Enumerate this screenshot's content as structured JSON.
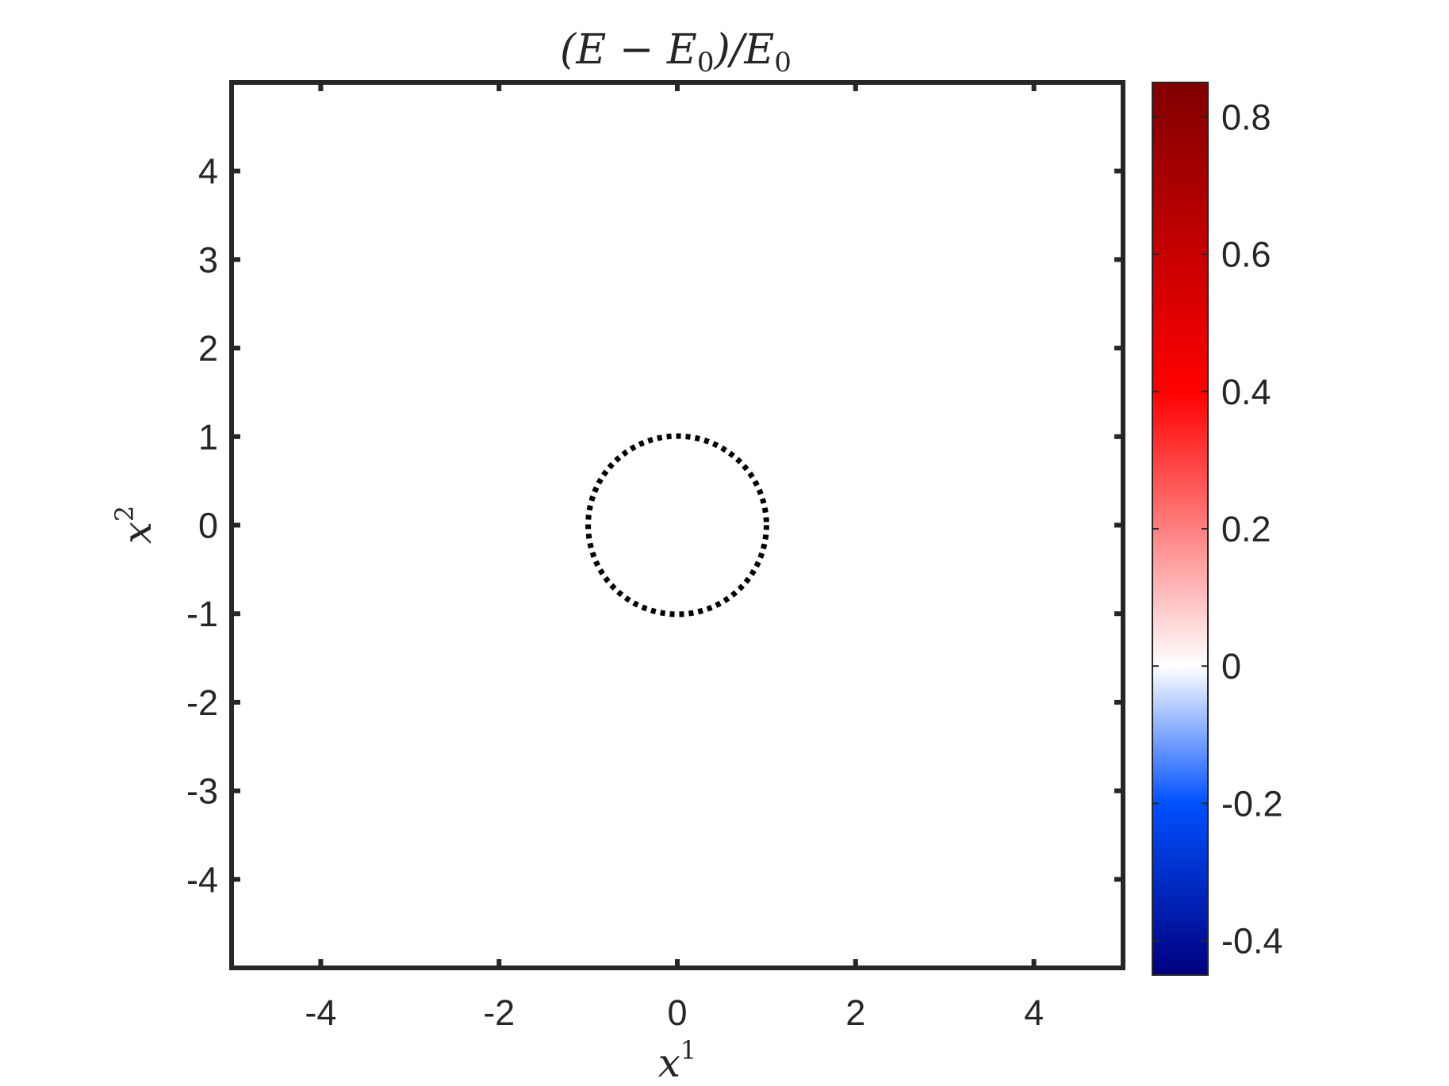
{
  "chart_data": {
    "type": "heatmap",
    "title": "(E − E0)/E0",
    "title_parts": {
      "open": "(E − E",
      "sub1": "0",
      "mid": ")/E",
      "sub2": "0"
    },
    "xlabel": {
      "base": "x",
      "sup": "1"
    },
    "ylabel": {
      "base": "x",
      "sup": "2"
    },
    "xlim": [
      -5,
      5
    ],
    "ylim": [
      -5,
      5
    ],
    "xticks": [
      -4,
      -2,
      0,
      2,
      4
    ],
    "yticks": [
      -4,
      -3,
      -2,
      -1,
      0,
      1,
      2,
      3,
      4
    ],
    "field_value": 0,
    "circle": {
      "center": [
        0,
        0
      ],
      "radius": 1,
      "style": "dotted",
      "color": "#000000"
    },
    "colorbar": {
      "lim": [
        -0.45,
        0.85
      ],
      "ticks": [
        -0.4,
        -0.2,
        0,
        0.2,
        0.4,
        0.6,
        0.8
      ],
      "tick_labels": [
        "-0.4",
        "-0.2",
        "0",
        "0.2",
        "0.4",
        "0.6",
        "0.8"
      ],
      "colors": {
        "min": "#00007f",
        "low": "#0050ff",
        "zero": "#ffffff",
        "mid_high": "#ff0000",
        "max": "#800000"
      }
    },
    "grid": false
  }
}
